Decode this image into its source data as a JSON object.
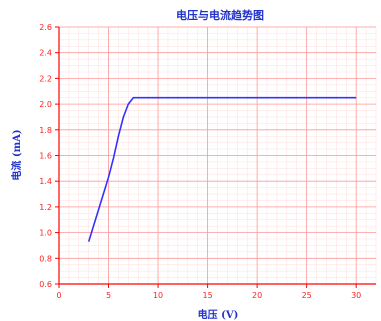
{
  "chart_data": {
    "type": "line",
    "title": "电压与电流趋势图",
    "xlabel": "电压 (V)",
    "ylabel": "电流 (mA)",
    "xlim": [
      0,
      32
    ],
    "ylim": [
      0.6,
      2.6
    ],
    "x_ticks": [
      0,
      5,
      10,
      15,
      20,
      25,
      30
    ],
    "y_ticks": [
      0.6,
      0.8,
      1.0,
      1.2,
      1.4,
      1.6,
      1.8,
      2.0,
      2.2,
      2.4,
      2.6
    ],
    "grid": true,
    "series": [
      {
        "color": "#3333ff",
        "x": [
          3.0,
          4.0,
          5.0,
          5.5,
          6.0,
          6.5,
          7.0,
          7.5,
          8.0,
          10.0,
          15.0,
          20.0,
          25.0,
          30.0
        ],
        "y": [
          0.93,
          1.18,
          1.43,
          1.58,
          1.75,
          1.9,
          2.0,
          2.05,
          2.05,
          2.05,
          2.05,
          2.05,
          2.05,
          2.05
        ]
      }
    ],
    "colors": {
      "axis": "#ff0000",
      "major_grid": "#ff9999",
      "minor_grid": "#ffdede",
      "text": "#2233cc"
    }
  }
}
